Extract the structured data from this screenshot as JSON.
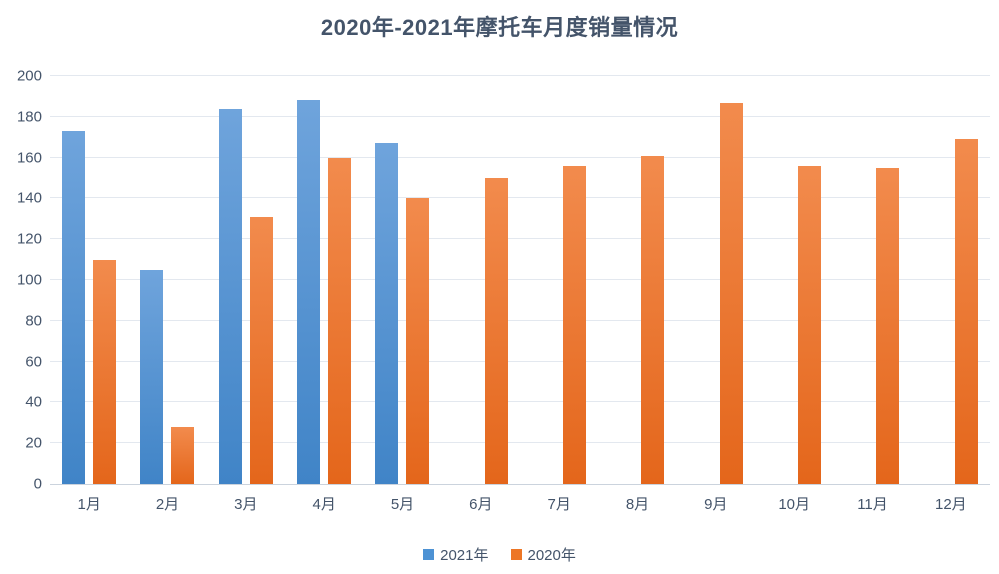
{
  "title": "2020年-2021年摩托车月度销量情况",
  "colors": {
    "title_text": "#44546A",
    "axis_text": "#44546A",
    "gridline": "#E3E8EF",
    "axis_line": "#CBD3DD",
    "background": "#FFFFFF"
  },
  "chart_data": {
    "type": "bar",
    "title": "2020年-2021年摩托车月度销量情况",
    "xlabel": "",
    "ylabel": "",
    "categories": [
      "1月",
      "2月",
      "3月",
      "4月",
      "5月",
      "6月",
      "7月",
      "8月",
      "9月",
      "10月",
      "11月",
      "12月"
    ],
    "series": [
      {
        "name": "2021年",
        "legend_color": "#4D92D4",
        "color_top": "#6FA4DC",
        "color_bottom": "#4084C7",
        "values": [
          173,
          105,
          184,
          188,
          167,
          null,
          null,
          null,
          null,
          null,
          null,
          null
        ]
      },
      {
        "name": "2020年",
        "legend_color": "#ED7625",
        "color_top": "#F28B4D",
        "color_bottom": "#E4661B",
        "values": [
          110,
          28,
          131,
          160,
          140,
          150,
          156,
          161,
          187,
          156,
          155,
          169
        ]
      }
    ],
    "ylim": [
      0,
      200
    ],
    "yticks": [
      0,
      20,
      40,
      60,
      80,
      100,
      120,
      140,
      160,
      180,
      200
    ],
    "grid": true,
    "legend_position": "bottom"
  }
}
